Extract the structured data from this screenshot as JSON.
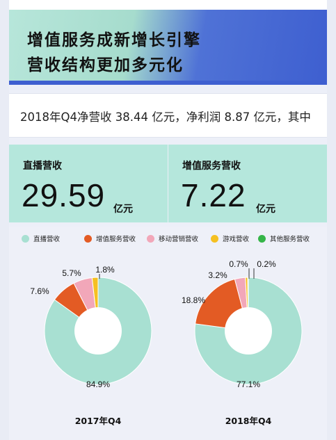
{
  "header": {
    "title_line1": "增值服务成新增长引擎",
    "title_line2": "营收结构更加多元化"
  },
  "summary": {
    "text": "2018年Q4净营收 38.44 亿元，净利润 8.87 亿元，其中"
  },
  "kpis": [
    {
      "label": "直播营收",
      "value": "29.59",
      "unit": "亿元"
    },
    {
      "label": "增值服务营收",
      "value": "7.22",
      "unit": "亿元"
    }
  ],
  "colors": {
    "live": "#a8e0d2",
    "value_added": "#e35b24",
    "mobile_marketing": "#f2a7b9",
    "games": "#f5c021",
    "other": "#35b548"
  },
  "chart_data": {
    "type": "pie",
    "donut": true,
    "legend_position": "top",
    "legend": [
      "直播营收",
      "增值服务营收",
      "移动营销营收",
      "游戏营收",
      "其他服务营收"
    ],
    "charts": [
      {
        "caption": "2017年Q4",
        "slices": [
          {
            "name": "直播营收",
            "value": 84.9,
            "label": "84.9%"
          },
          {
            "name": "增值服务营收",
            "value": 7.6,
            "label": "7.6%"
          },
          {
            "name": "移动营销营收",
            "value": 5.7,
            "label": "5.7%"
          },
          {
            "name": "游戏营收",
            "value": 1.8,
            "label": "1.8%"
          },
          {
            "name": "其他服务营收",
            "value": 0,
            "label": ""
          }
        ]
      },
      {
        "caption": "2018年Q4",
        "slices": [
          {
            "name": "直播营收",
            "value": 77.1,
            "label": "77.1%"
          },
          {
            "name": "增值服务营收",
            "value": 18.8,
            "label": "18.8%"
          },
          {
            "name": "移动营销营收",
            "value": 3.2,
            "label": "3.2%"
          },
          {
            "name": "游戏营收",
            "value": 0.7,
            "label": "0.7%"
          },
          {
            "name": "其他服务营收",
            "value": 0.2,
            "label": "0.2%"
          }
        ]
      }
    ]
  }
}
